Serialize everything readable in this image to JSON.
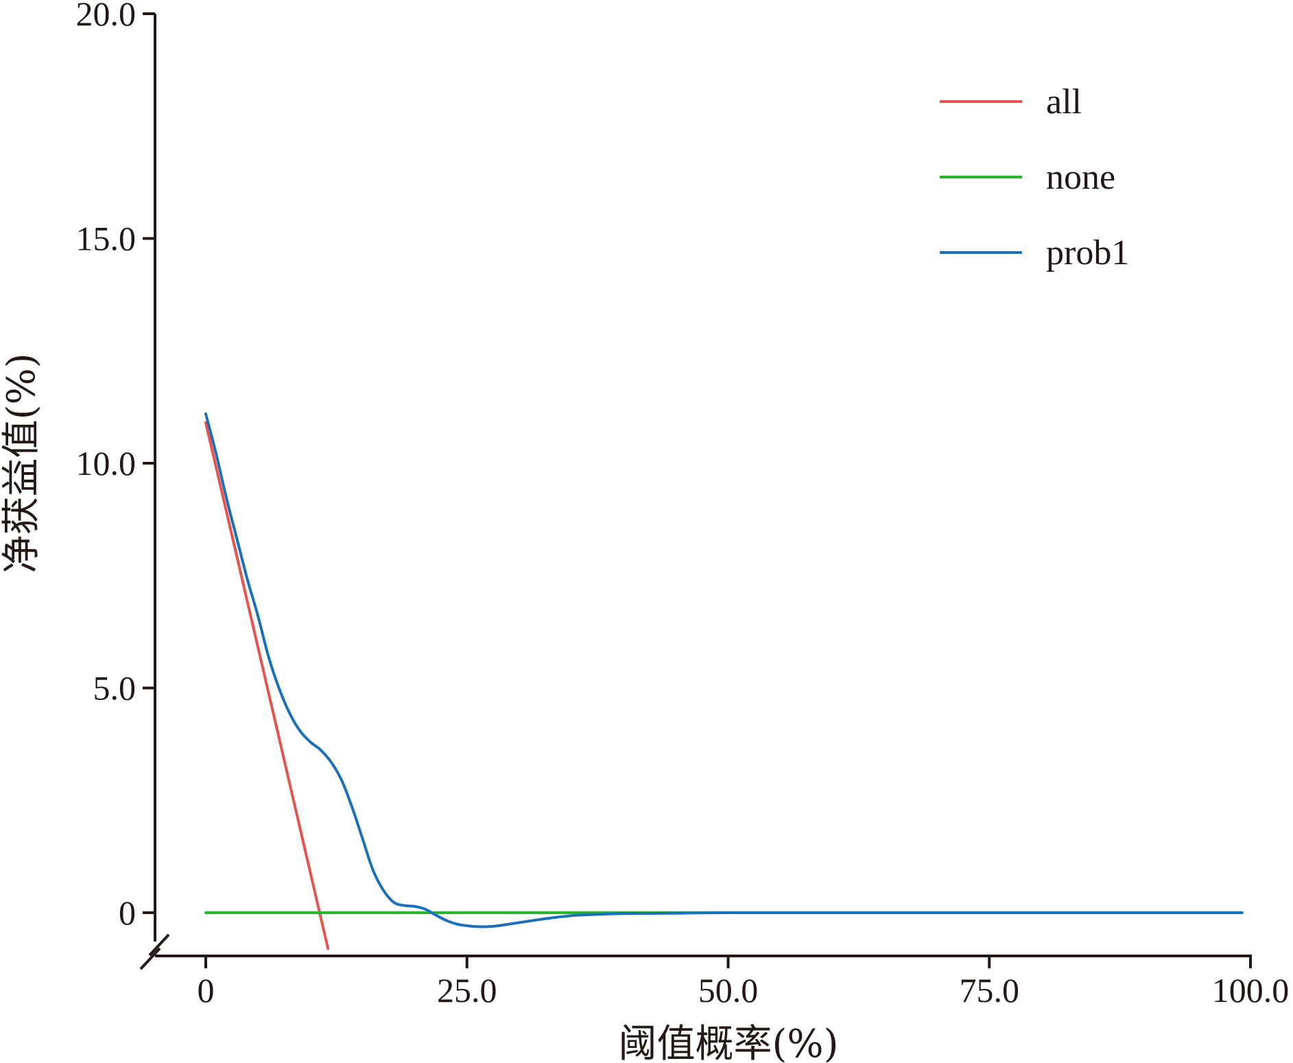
{
  "chart_data": {
    "type": "line",
    "title": "",
    "xlabel": "阈值概率(%)",
    "ylabel": "净获益值(%)",
    "xlim": [
      0,
      100
    ],
    "ylim": [
      -0.8,
      20
    ],
    "x_ticks": [
      0,
      25,
      50,
      75,
      100
    ],
    "x_tick_labels": [
      "0",
      "25.0",
      "50.0",
      "75.0",
      "100.0"
    ],
    "y_ticks": [
      0,
      5,
      10,
      15,
      20
    ],
    "y_tick_labels": [
      "0",
      "5.0",
      "10.0",
      "15.0",
      "20.0"
    ],
    "y_axis_break": true,
    "grid": false,
    "legend_position": "top-right",
    "series": [
      {
        "name": "all",
        "color": "#e8524f",
        "points": [
          [
            0,
            10.9
          ],
          [
            11.7,
            -0.8
          ]
        ]
      },
      {
        "name": "none",
        "color": "#2db32d",
        "points": [
          [
            0,
            0
          ],
          [
            99.2,
            0
          ]
        ]
      },
      {
        "name": "prob1",
        "color": "#1b6fbb",
        "points": [
          [
            0,
            11.1
          ],
          [
            1,
            10.2
          ],
          [
            2,
            9.2
          ],
          [
            3,
            8.3
          ],
          [
            4,
            7.4
          ],
          [
            5,
            6.6
          ],
          [
            6,
            5.7
          ],
          [
            7,
            5.0
          ],
          [
            8,
            4.45
          ],
          [
            9,
            4.05
          ],
          [
            10,
            3.8
          ],
          [
            11,
            3.62
          ],
          [
            12,
            3.35
          ],
          [
            13,
            2.95
          ],
          [
            14,
            2.35
          ],
          [
            15,
            1.65
          ],
          [
            16,
            0.95
          ],
          [
            17,
            0.5
          ],
          [
            18,
            0.23
          ],
          [
            19,
            0.16
          ],
          [
            20,
            0.14
          ],
          [
            21,
            0.08
          ],
          [
            22,
            -0.05
          ],
          [
            23,
            -0.17
          ],
          [
            24,
            -0.25
          ],
          [
            25,
            -0.29
          ],
          [
            26,
            -0.31
          ],
          [
            27,
            -0.31
          ],
          [
            28,
            -0.29
          ],
          [
            30,
            -0.22
          ],
          [
            32,
            -0.15
          ],
          [
            34,
            -0.09
          ],
          [
            36,
            -0.05
          ],
          [
            40,
            -0.02
          ],
          [
            45,
            -0.01
          ],
          [
            50,
            0
          ],
          [
            60,
            0
          ],
          [
            70,
            0
          ],
          [
            80,
            0
          ],
          [
            90,
            0
          ],
          [
            99.2,
            0
          ]
        ]
      }
    ]
  }
}
